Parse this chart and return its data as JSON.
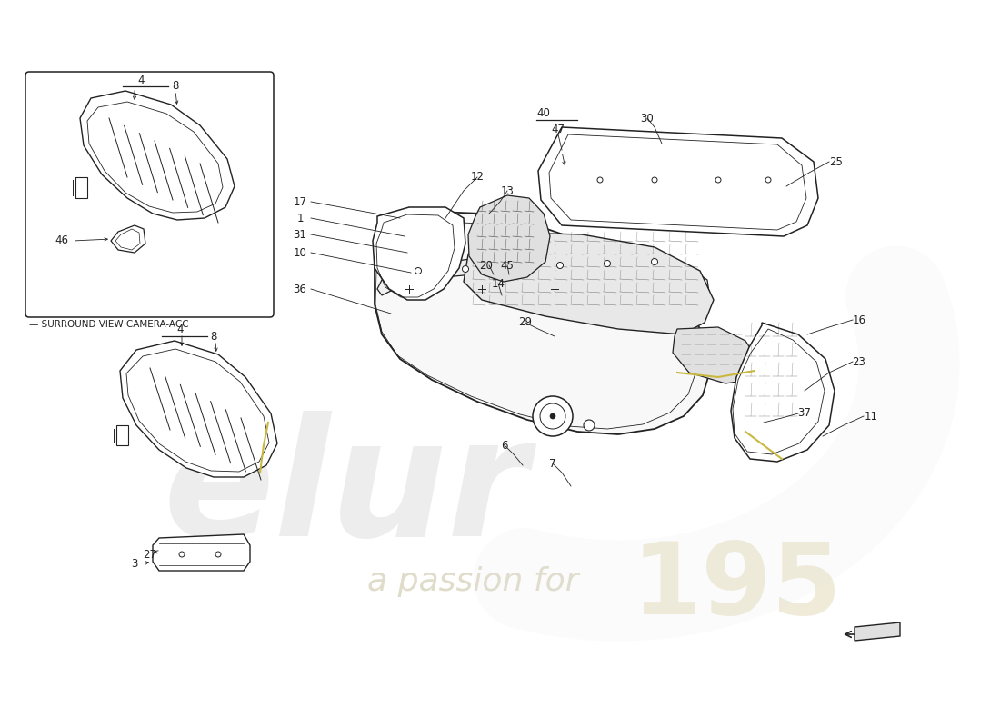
{
  "background_color": "#ffffff",
  "line_color": "#222222",
  "box_label": "SURROUND VIEW CAMERA-ACC",
  "watermark1": "elur",
  "watermark2": "a passion for",
  "watermark3": "195",
  "lw": 0.9
}
